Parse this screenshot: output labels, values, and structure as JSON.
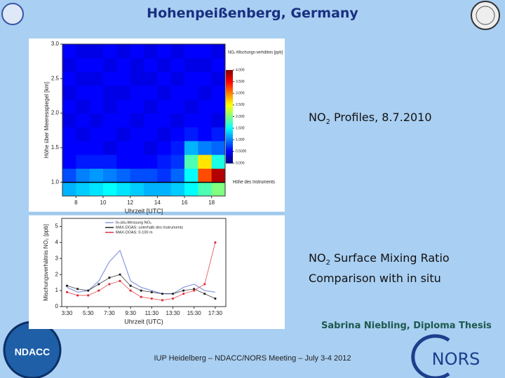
{
  "slide": {
    "title": "Hohenpeißenberg, Germany",
    "caption1": {
      "pre": "NO",
      "sub": "2",
      "post": " Profiles, 8.7.2010"
    },
    "caption2": {
      "pre": "NO",
      "sub": "2",
      "post": " Surface Mixing Ratio",
      "line2": "Comparison with in situ"
    },
    "author": "Sabrina Niebling, Diploma Thesis",
    "footer": "IUP Heidelberg – NDACC/NORS Meeting – July 3-4 2012",
    "logo_left": "NDACC",
    "logo_right": "NORS"
  },
  "chart_data": [
    {
      "type": "heatmap",
      "xlabel": "Uhrzeit [UTC]",
      "ylabel": "Höhe über Meeresspiegel [km]",
      "colorbar_title": "NO₂-Mischungs-verhältnis [ppb]",
      "annotation": "Höhe des Instruments",
      "x": [
        7.5,
        8.5,
        9.5,
        10.5,
        11.5,
        12.5,
        13.5,
        14.5,
        15.5,
        16.5,
        17.5,
        18.5
      ],
      "y": [
        0.9,
        1.1,
        1.3,
        1.5,
        1.7,
        1.9,
        2.1,
        2.3,
        2.5,
        2.7,
        2.9
      ],
      "values": [
        [
          1.2,
          1.3,
          1.4,
          1.5,
          1.4,
          1.3,
          1.2,
          1.2,
          1.3,
          1.5,
          1.8,
          2.0
        ],
        [
          0.8,
          1.0,
          1.1,
          1.0,
          0.9,
          0.8,
          0.8,
          0.7,
          0.9,
          1.5,
          3.2,
          3.8
        ],
        [
          0.5,
          0.6,
          0.6,
          0.6,
          0.5,
          0.5,
          0.5,
          0.6,
          0.7,
          1.8,
          2.6,
          1.6
        ],
        [
          0.5,
          0.5,
          0.5,
          0.4,
          0.5,
          0.5,
          0.4,
          0.5,
          0.6,
          1.2,
          1.0,
          0.9
        ],
        [
          0.5,
          0.4,
          0.5,
          0.5,
          0.4,
          0.5,
          0.5,
          0.4,
          0.5,
          0.6,
          0.5,
          0.6
        ],
        [
          0.4,
          0.5,
          0.4,
          0.5,
          0.5,
          0.4,
          0.5,
          0.5,
          0.4,
          0.5,
          0.5,
          0.4
        ],
        [
          0.5,
          0.4,
          0.5,
          0.4,
          0.5,
          0.5,
          0.4,
          0.5,
          0.5,
          0.4,
          0.5,
          0.5
        ],
        [
          0.4,
          0.5,
          0.5,
          0.4,
          0.4,
          0.5,
          0.5,
          0.4,
          0.5,
          0.5,
          0.4,
          0.5
        ],
        [
          0.5,
          0.4,
          0.4,
          0.5,
          0.5,
          0.4,
          0.4,
          0.5,
          0.4,
          0.5,
          0.5,
          0.4
        ],
        [
          0.4,
          0.5,
          0.5,
          0.4,
          0.5,
          0.4,
          0.5,
          0.4,
          0.5,
          0.4,
          0.4,
          0.5
        ],
        [
          0.5,
          0.4,
          0.4,
          0.5,
          0.4,
          0.5,
          0.4,
          0.5,
          0.4,
          0.5,
          0.5,
          0.4
        ]
      ],
      "xlim": [
        7,
        19
      ],
      "xticks": [
        8,
        10,
        12,
        14,
        16,
        18
      ],
      "ylim": [
        0.8,
        3.0
      ],
      "yticks": [
        {
          "value": 1,
          "label": "1.0"
        },
        1.5,
        {
          "value": 2,
          "label": "2.0"
        },
        2.5,
        {
          "value": 3,
          "label": "3.0"
        }
      ],
      "zlim": [
        0,
        4
      ],
      "zticks": [
        {
          "value": 0,
          "label": "0.000"
        },
        {
          "value": 0.5,
          "label": "0.5000"
        },
        {
          "value": 1,
          "label": "1.000"
        },
        {
          "value": 1.5,
          "label": "1.500"
        },
        {
          "value": 2,
          "label": "2.000"
        },
        {
          "value": 2.5,
          "label": "2.500"
        },
        {
          "value": 3,
          "label": "3.000"
        },
        {
          "value": 3.5,
          "label": "3.500"
        },
        {
          "value": 4,
          "label": "4.000"
        }
      ]
    },
    {
      "type": "line",
      "xlabel": "Uhrzeit (UTC)",
      "ylabel": "Mischungsverhältnis NO₂ [ppb]",
      "x": [
        3.5,
        4.5,
        5.5,
        6.5,
        7.5,
        8.5,
        9.5,
        10.5,
        11.5,
        12.5,
        13.5,
        14.5,
        15.5,
        16.5,
        17.5
      ],
      "series": [
        {
          "name": "In-situ-Messung NO₂",
          "color": "#8f9ee0",
          "values": [
            1.2,
            0.9,
            1.0,
            1.6,
            2.8,
            3.5,
            1.6,
            1.2,
            1.0,
            0.8,
            0.8,
            1.2,
            1.4,
            1.0,
            0.9
          ]
        },
        {
          "name": "MAX-DOAS: unterhalb des Instruments",
          "color": "#222222",
          "values": [
            1.3,
            1.1,
            1.0,
            1.4,
            1.8,
            2.0,
            1.3,
            1.0,
            0.9,
            0.8,
            0.8,
            1.0,
            1.1,
            0.8,
            0.5
          ]
        },
        {
          "name": "MAX-DOAS: 0-100 m",
          "color": "#e0303a",
          "values": [
            0.9,
            0.7,
            0.7,
            1.0,
            1.4,
            1.6,
            1.0,
            0.6,
            0.5,
            0.4,
            0.5,
            0.8,
            1.0,
            1.4,
            4.0
          ]
        }
      ],
      "xlim": [
        3,
        18.5
      ],
      "xticks": [
        {
          "value": 3.5,
          "label": "3:30"
        },
        {
          "value": 5.5,
          "label": "5:30"
        },
        {
          "value": 7.5,
          "label": "7:30"
        },
        {
          "value": 9.5,
          "label": "9:30"
        },
        {
          "value": 11.5,
          "label": "11:30"
        },
        {
          "value": 13.5,
          "label": "13:30"
        },
        {
          "value": 15.5,
          "label": "15:30"
        },
        {
          "value": 17.5,
          "label": "17:30"
        }
      ],
      "ylim": [
        0,
        5.5
      ],
      "yticks": [
        0,
        1,
        2,
        3,
        4,
        5
      ],
      "legend": "upper center"
    }
  ]
}
